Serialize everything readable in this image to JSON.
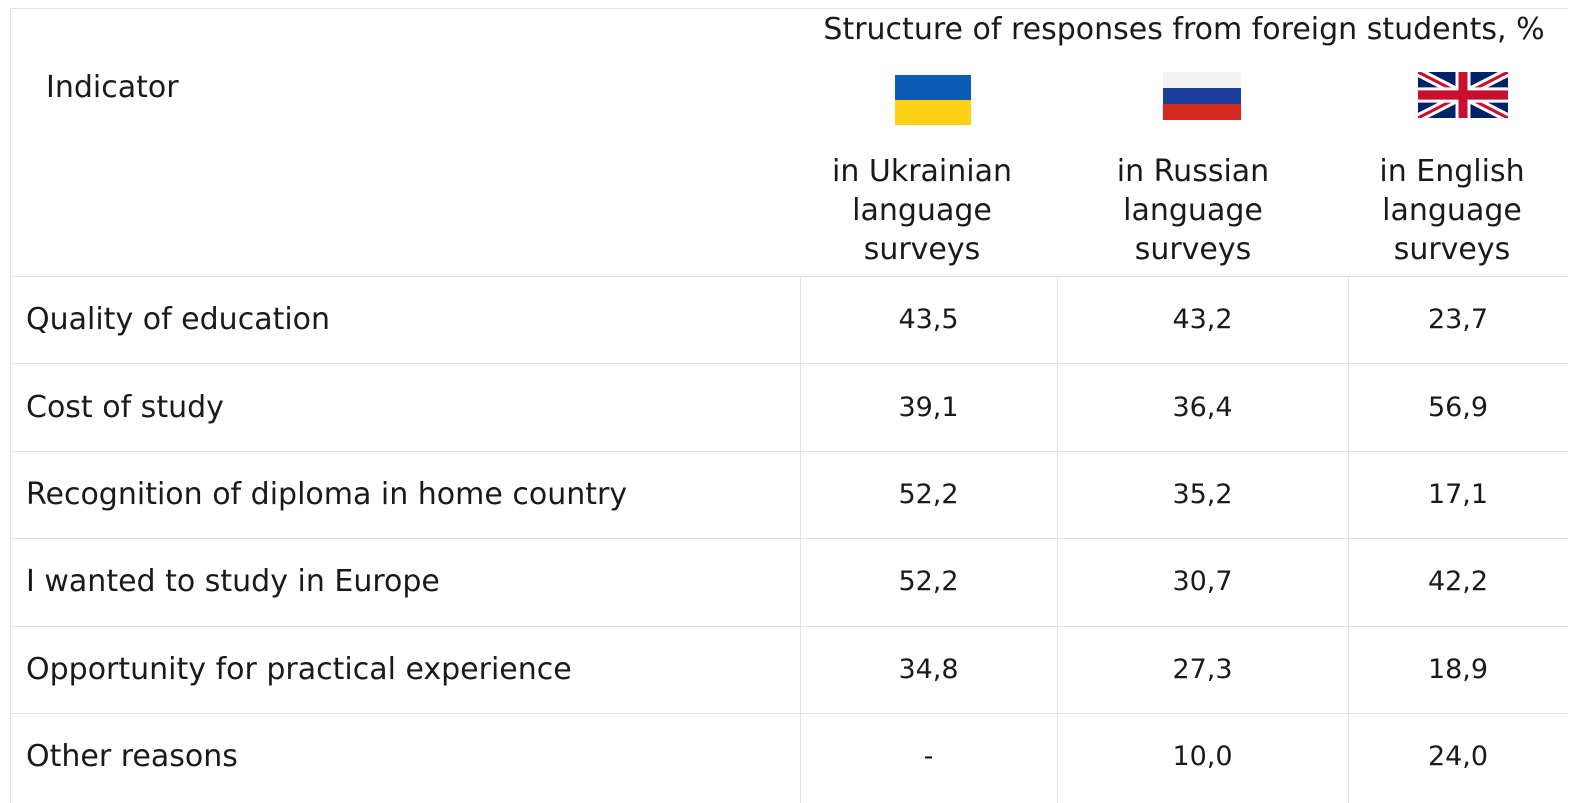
{
  "header": {
    "indicator": "Indicator",
    "group": "Structure of responses from foreign students, %",
    "columns": [
      "in Ukrainian language surveys",
      "in Russian language surveys",
      "in English language surveys"
    ]
  },
  "table": {
    "rows": [
      [
        "Quality of education",
        "43,5",
        "43,2",
        "23,7"
      ],
      [
        "Cost of study",
        "39,1",
        "36,4",
        "56,9"
      ],
      [
        "Recognition of diploma in home country",
        "52,2",
        "35,2",
        "17,1"
      ],
      [
        "I wanted to study in Europe",
        "52,2",
        "30,7",
        "42,2"
      ],
      [
        "Opportunity for practical experience",
        "34,8",
        "27,3",
        "18,9"
      ],
      [
        "Other reasons",
        "-",
        "10,0",
        "24,0"
      ]
    ]
  }
}
